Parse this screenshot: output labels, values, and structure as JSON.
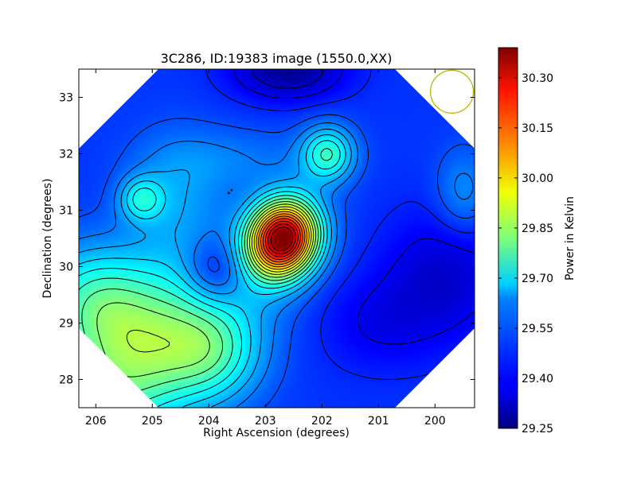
{
  "chart_data": {
    "type": "heatmap",
    "title": "3C286, ID:19383 image (1550.0,XX)",
    "xlabel": "Right Ascension (degrees)",
    "ylabel": "Declination (degrees)",
    "x_range": [
      206.3,
      199.3
    ],
    "y_range": [
      27.5,
      33.5
    ],
    "x_ticks": [
      "206",
      "205",
      "204",
      "203",
      "202",
      "201",
      "200"
    ],
    "x_tick_values": [
      206,
      205,
      204,
      203,
      202,
      201,
      200
    ],
    "y_ticks": [
      "28",
      "29",
      "30",
      "31",
      "32",
      "33"
    ],
    "y_tick_values": [
      28,
      29,
      30,
      31,
      32,
      33
    ],
    "colorbar": {
      "label": "Power in Kelvin",
      "min": 29.25,
      "max": 30.39,
      "ticks": [
        "29.25",
        "29.40",
        "29.55",
        "29.70",
        "29.85",
        "30.00",
        "30.15",
        "30.30"
      ],
      "tick_values": [
        29.25,
        29.4,
        29.55,
        29.7,
        29.85,
        30.0,
        30.15,
        30.3
      ],
      "colormap": "jet"
    },
    "background_level": 29.45,
    "features": [
      {
        "kind": "peak",
        "ra": 202.7,
        "dec": 30.5,
        "value": 30.38,
        "sx": 0.42,
        "sy": 0.48,
        "rot": 25
      },
      {
        "kind": "peak",
        "ra": 201.9,
        "dec": 32.0,
        "value": 29.72,
        "sx": 0.33,
        "sy": 0.35,
        "rot": 0
      },
      {
        "kind": "peak",
        "ra": 205.2,
        "dec": 31.2,
        "value": 29.64,
        "sx": 0.28,
        "sy": 0.28,
        "rot": 0
      },
      {
        "kind": "ridge",
        "ra": 205.2,
        "dec": 28.3,
        "value": 29.8,
        "sx": 1.6,
        "sy": 0.8,
        "rot": -40
      },
      {
        "kind": "ridge",
        "ra": 206.0,
        "dec": 29.4,
        "value": 29.72,
        "sx": 0.8,
        "sy": 0.7,
        "rot": 0
      },
      {
        "kind": "ridge",
        "ra": 203.9,
        "dec": 28.4,
        "value": 29.62,
        "sx": 0.6,
        "sy": 0.6,
        "rot": 0
      },
      {
        "kind": "ridge",
        "ra": 204.6,
        "dec": 31.2,
        "value": 29.56,
        "sx": 0.6,
        "sy": 0.8,
        "rot": 0
      },
      {
        "kind": "ridge",
        "ra": 203.5,
        "dec": 31.9,
        "value": 29.52,
        "sx": 1.0,
        "sy": 0.4,
        "rot": 0
      },
      {
        "kind": "ridge",
        "ra": 199.5,
        "dec": 31.3,
        "value": 29.56,
        "sx": 0.35,
        "sy": 0.55,
        "rot": 0
      },
      {
        "kind": "trough",
        "ra": 203.9,
        "dec": 29.9,
        "value": 29.3,
        "sx": 0.38,
        "sy": 0.42,
        "rot": 0
      },
      {
        "kind": "trough",
        "ra": 202.6,
        "dec": 33.5,
        "value": 29.27,
        "sx": 0.7,
        "sy": 0.38,
        "rot": 0
      },
      {
        "kind": "trough",
        "ra": 199.8,
        "dec": 29.9,
        "value": 29.34,
        "sx": 0.8,
        "sy": 0.8,
        "rot": 0
      },
      {
        "kind": "trough",
        "ra": 201.0,
        "dec": 29.0,
        "value": 29.38,
        "sx": 0.8,
        "sy": 0.6,
        "rot": 0
      }
    ],
    "contour_levels": [
      29.33,
      29.38,
      29.43,
      29.48,
      29.53,
      29.58,
      29.63,
      29.68,
      29.73,
      29.78,
      29.83,
      29.88,
      29.93,
      29.98,
      30.03,
      30.08,
      30.13,
      30.18,
      30.23,
      30.28,
      30.33
    ],
    "beam": {
      "ra": 199.7,
      "dec": 33.1,
      "radius_deg": 0.38,
      "color": "#b8b800"
    },
    "grid": false,
    "legend": "none"
  }
}
